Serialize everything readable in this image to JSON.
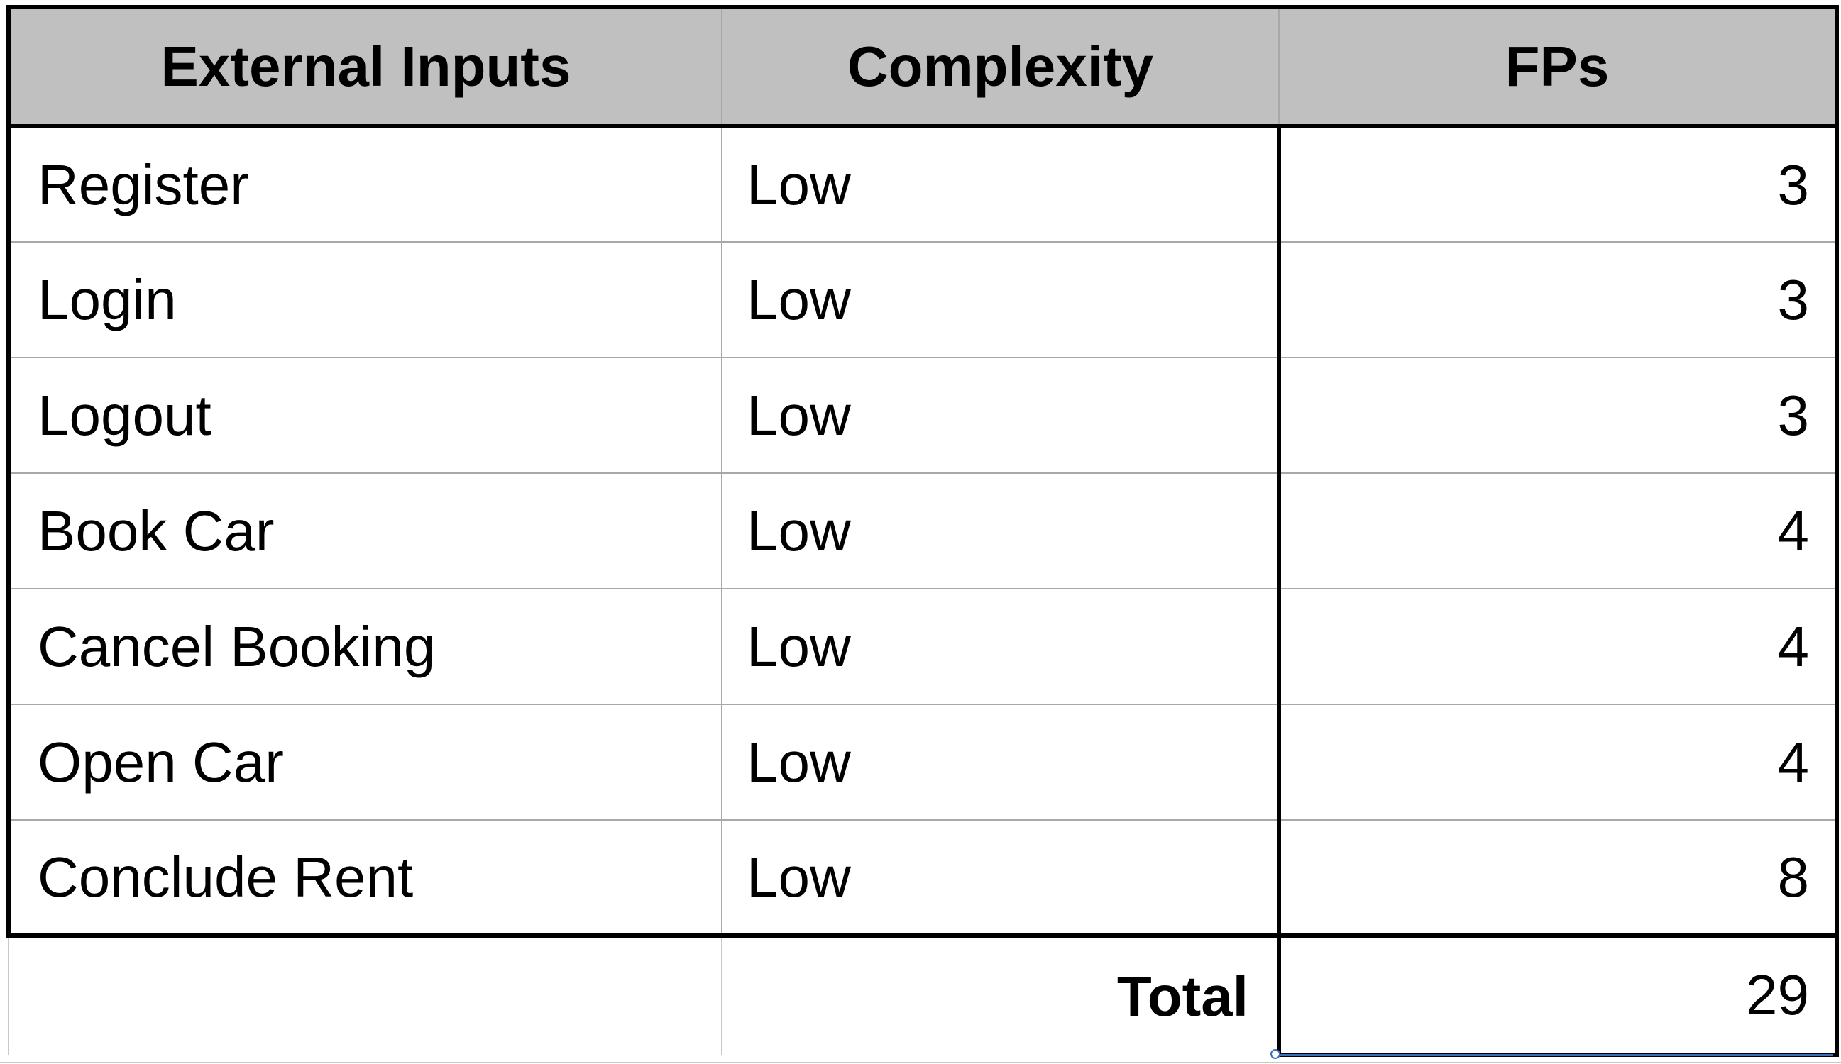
{
  "table": {
    "headers": {
      "col1": "External Inputs",
      "col2": "Complexity",
      "col3": "FPs"
    },
    "rows": [
      {
        "name": "Register",
        "complexity": "Low",
        "fps": "3"
      },
      {
        "name": "Login",
        "complexity": "Low",
        "fps": "3"
      },
      {
        "name": "Logout",
        "complexity": "Low",
        "fps": "3"
      },
      {
        "name": "Book Car",
        "complexity": "Low",
        "fps": "4"
      },
      {
        "name": "Cancel Booking",
        "complexity": "Low",
        "fps": "4"
      },
      {
        "name": "Open Car",
        "complexity": "Low",
        "fps": "4"
      },
      {
        "name": "Conclude Rent",
        "complexity": "Low",
        "fps": "8"
      }
    ],
    "total": {
      "label": "Total",
      "value": "29"
    }
  },
  "colors": {
    "header_background": "#c0c0c0",
    "border": "#000000",
    "gridline": "#a8a8a8",
    "selection": "#3d6fb6"
  }
}
